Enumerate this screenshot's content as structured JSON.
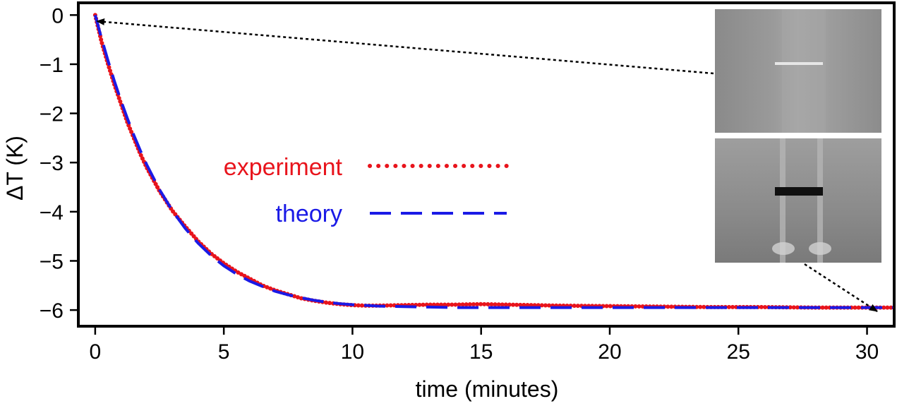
{
  "chart_data": {
    "type": "line",
    "xlabel": "time (minutes)",
    "ylabel": "ΔT (K)",
    "xlim": [
      -0.6,
      31
    ],
    "ylim": [
      -6.3,
      0.22
    ],
    "x_ticks": [
      0,
      5,
      10,
      15,
      20,
      25,
      30
    ],
    "y_ticks": [
      0,
      -1,
      -2,
      -3,
      -4,
      -5,
      -6
    ],
    "x_tick_labels": [
      "0",
      "5",
      "10",
      "15",
      "20",
      "25",
      "30"
    ],
    "y_tick_labels": [
      "0",
      "−1",
      "−2",
      "−3",
      "−4",
      "−5",
      "−6"
    ],
    "grid": false,
    "legend_position": "center-left",
    "series": [
      {
        "name": "experiment",
        "style": "dotted",
        "color": "#e8141c",
        "x": [
          0,
          0.25,
          0.5,
          0.75,
          1,
          1.25,
          1.5,
          1.75,
          2,
          2.5,
          3,
          3.5,
          4,
          4.5,
          5,
          5.5,
          6,
          6.5,
          7,
          7.5,
          8,
          8.5,
          9,
          9.5,
          10,
          10.5,
          11,
          12,
          13,
          14,
          15,
          16,
          17,
          18,
          20,
          22,
          24,
          26,
          28,
          30,
          31
        ],
        "y": [
          0,
          -0.55,
          -1.0,
          -1.42,
          -1.8,
          -2.18,
          -2.5,
          -2.82,
          -3.1,
          -3.58,
          -3.98,
          -4.3,
          -4.6,
          -4.85,
          -5.05,
          -5.22,
          -5.36,
          -5.5,
          -5.6,
          -5.68,
          -5.76,
          -5.81,
          -5.85,
          -5.88,
          -5.9,
          -5.91,
          -5.91,
          -5.9,
          -5.89,
          -5.89,
          -5.88,
          -5.89,
          -5.9,
          -5.91,
          -5.92,
          -5.93,
          -5.94,
          -5.94,
          -5.95,
          -5.95,
          -5.95
        ]
      },
      {
        "name": "theory",
        "style": "dashed",
        "color": "#1a1ae6",
        "x": [
          0,
          0.25,
          0.5,
          0.75,
          1,
          1.25,
          1.5,
          1.75,
          2,
          2.5,
          3,
          3.5,
          4,
          4.5,
          5,
          5.5,
          6,
          6.5,
          7,
          7.5,
          8,
          8.5,
          9,
          9.5,
          10,
          11,
          12,
          13,
          14,
          15,
          16,
          18,
          20,
          22,
          24,
          26,
          28,
          30,
          31
        ],
        "y": [
          0,
          -0.48,
          -0.93,
          -1.35,
          -1.74,
          -2.1,
          -2.44,
          -2.75,
          -3.04,
          -3.55,
          -3.98,
          -4.34,
          -4.64,
          -4.89,
          -5.1,
          -5.27,
          -5.41,
          -5.52,
          -5.62,
          -5.69,
          -5.75,
          -5.8,
          -5.84,
          -5.87,
          -5.89,
          -5.92,
          -5.93,
          -5.94,
          -5.95,
          -5.95,
          -5.95,
          -5.95,
          -5.95,
          -5.95,
          -5.95,
          -5.95,
          -5.95,
          -5.95,
          -5.95
        ]
      }
    ],
    "annotations": [
      {
        "type": "arrow",
        "style": "dotted",
        "from": "top inset image",
        "to_x": 0.9,
        "to_y": -0.05
      },
      {
        "type": "arrow",
        "style": "dotted",
        "from": "bottom inset image",
        "to_x": 30.9,
        "to_y": -5.95
      }
    ],
    "insets": [
      {
        "name": "top-inset-image",
        "description": "grayscale image, faint bright horizontal line"
      },
      {
        "name": "bottom-inset-image",
        "description": "grayscale image, dark horizontal bar"
      }
    ]
  }
}
